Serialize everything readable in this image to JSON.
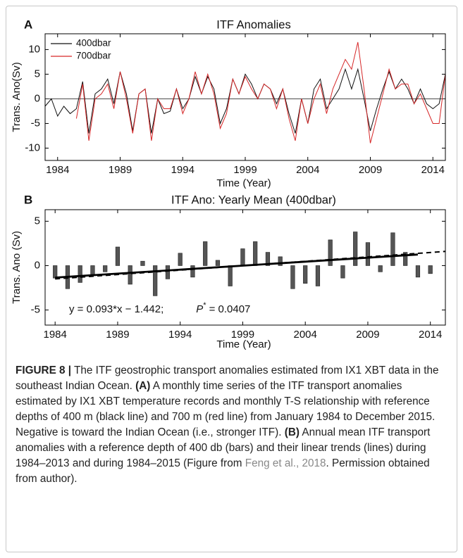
{
  "chart_data": [
    {
      "type": "line",
      "panel": "A",
      "title": "ITF Anomalies",
      "x_label": "Time (Year)",
      "y_label": "Trans. Ano(Sv)",
      "xlim": [
        1983,
        2015
      ],
      "ylim": [
        -12.5,
        13.2
      ],
      "xticks": [
        1984,
        1989,
        1994,
        1999,
        2004,
        2009,
        2014
      ],
      "yticks": [
        -10,
        -5,
        0,
        5,
        10
      ],
      "zero_line": true,
      "legend": "upper left",
      "x": [
        1983,
        1983.5,
        1984,
        1984.5,
        1985,
        1985.5,
        1986,
        1986.5,
        1987,
        1987.5,
        1988,
        1988.5,
        1989,
        1989.5,
        1990,
        1990.5,
        1991,
        1991.5,
        1992,
        1992.5,
        1993,
        1993.5,
        1994,
        1994.5,
        1995,
        1995.5,
        1996,
        1996.5,
        1997,
        1997.5,
        1998,
        1998.5,
        1999,
        1999.5,
        2000,
        2000.5,
        2001,
        2001.5,
        2002,
        2002.5,
        2003,
        2003.5,
        2004,
        2004.5,
        2005,
        2005.5,
        2006,
        2006.5,
        2007,
        2007.5,
        2008,
        2008.5,
        2009,
        2009.5,
        2010,
        2010.5,
        2011,
        2011.5,
        2012,
        2012.5,
        2013,
        2013.5,
        2014,
        2014.5,
        2015
      ],
      "series": [
        {
          "name": "400dbar",
          "color": "#111111",
          "values": [
            -1.5,
            0,
            -3.5,
            -1.5,
            -3,
            -2,
            3.5,
            -7,
            1,
            2,
            4,
            -1,
            5.5,
            1,
            -6.5,
            1,
            2,
            -7,
            0,
            -3,
            -2.5,
            2,
            -2,
            0,
            4.5,
            1,
            4.5,
            2,
            -5,
            -2,
            4,
            1,
            5,
            3,
            0,
            3,
            2,
            -1,
            2,
            -3,
            -7,
            0,
            -5,
            2,
            4,
            -2,
            0,
            2,
            6,
            2,
            6,
            0,
            -6.5,
            -2,
            2,
            5.5,
            2,
            4,
            2,
            -1,
            2,
            -1,
            -2,
            -1,
            5
          ]
        },
        {
          "name": "700dbar",
          "color": "#d62728",
          "values": [
            null,
            null,
            null,
            null,
            null,
            -4,
            3,
            -8.5,
            0,
            1,
            3,
            -2,
            5.5,
            0,
            -7,
            1,
            2,
            -8.5,
            0,
            -2,
            -2,
            2,
            -3,
            0,
            5.5,
            1,
            5,
            1,
            -6,
            -3,
            4,
            1,
            4.5,
            2,
            0,
            3,
            2,
            -2,
            2,
            -4,
            -8.5,
            0,
            -5,
            0,
            3,
            -3,
            2,
            5,
            8,
            6,
            11.5,
            2,
            -9,
            -4,
            1,
            6,
            2,
            3,
            3,
            -1,
            1,
            -2,
            -5,
            -5,
            5
          ]
        }
      ]
    },
    {
      "type": "bar",
      "panel": "B",
      "title": "ITF Ano: Yearly Mean (400dbar)",
      "x_label": "Time (Year)",
      "y_label": "Trans. Ano (Sv)",
      "xlim": [
        1983.2,
        2015.2
      ],
      "ylim": [
        -6.7,
        6.3
      ],
      "xticks": [
        1984,
        1989,
        1994,
        1999,
        2004,
        2009,
        2014
      ],
      "yticks": [
        -5,
        0,
        5
      ],
      "color": "#555555",
      "x": [
        1984,
        1985,
        1986,
        1987,
        1988,
        1989,
        1990,
        1991,
        1992,
        1993,
        1994,
        1995,
        1996,
        1997,
        1998,
        1999,
        2000,
        2001,
        2002,
        2003,
        2004,
        2005,
        2006,
        2007,
        2008,
        2009,
        2010,
        2011,
        2012,
        2013,
        2014
      ],
      "values": [
        -1.4,
        -2.6,
        -1.9,
        -1.0,
        -0.7,
        2.1,
        -2.1,
        0.5,
        -3.4,
        -1.5,
        1.4,
        -1.3,
        2.7,
        0.6,
        -2.3,
        1.9,
        2.7,
        1.5,
        1.0,
        -2.6,
        -2.0,
        -2.3,
        2.9,
        -1.4,
        3.8,
        2.6,
        -0.7,
        3.7,
        1.5,
        -1.3,
        -0.9
      ],
      "lines": [
        {
          "style": "solid",
          "x": [
            1984,
            2013
          ],
          "values": [
            -1.35,
            1.25
          ]
        },
        {
          "style": "dashed",
          "x": [
            1984,
            2015.2
          ],
          "values": [
            -1.5,
            1.6
          ]
        }
      ],
      "annotations": [
        "y = 0.093*x − 1.442;",
        "P",
        "*",
        "= 0.0407"
      ]
    }
  ],
  "caption": {
    "label": "FIGURE 8 |",
    "parts": [
      {
        "style": "plain",
        "text": " The ITF geostrophic transport anomalies estimated from IX1 XBT data in the southeast Indian Ocean. "
      },
      {
        "style": "bold",
        "text": "(A)"
      },
      {
        "style": "plain",
        "text": " A monthly time series of the ITF transport anomalies estimated by IX1 XBT temperature records and monthly T-S relationship with reference depths of 400 m (black line) and 700 m (red line) from January 1984 to December 2015. Negative is toward the Indian Ocean (i.e., stronger ITF). "
      },
      {
        "style": "bold",
        "text": "(B)"
      },
      {
        "style": "plain",
        "text": " Annual mean ITF transport anomalies with a reference depth of 400 db (bars) and their linear trends (lines) during 1984–2013 and during 1984–2015 (Figure from "
      },
      {
        "style": "link",
        "text": "Feng et al., 2018"
      },
      {
        "style": "plain",
        "text": ". Permission obtained from author)."
      }
    ]
  }
}
